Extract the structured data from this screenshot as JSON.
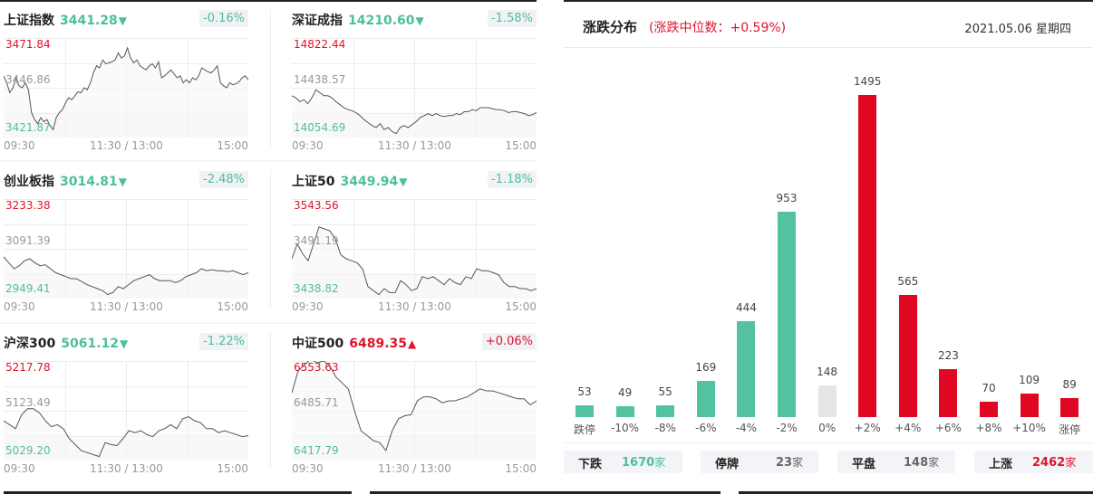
{
  "indices": [
    {
      "name": "上证指数",
      "price": "3441.28",
      "direction": "down",
      "arrow": "▼",
      "change_pct": "-0.16%",
      "y_high": "3471.84",
      "y_mid": "3446.86",
      "y_low": "3421.87",
      "x_labels": [
        "09:30",
        "11:30 / 13:00",
        "15:00"
      ],
      "series": [
        62,
        55,
        45,
        50,
        60,
        52,
        50,
        55,
        48,
        25,
        18,
        14,
        20,
        16,
        18,
        12,
        8,
        20,
        25,
        28,
        35,
        40,
        38,
        42,
        46,
        45,
        50,
        48,
        55,
        65,
        72,
        70,
        78,
        74,
        75,
        76,
        78,
        85,
        80,
        82,
        90,
        80,
        75,
        78,
        72,
        70,
        68,
        72,
        74,
        70,
        76,
        60,
        62,
        65,
        68,
        64,
        60,
        62,
        55,
        58,
        55,
        60,
        58,
        62,
        70,
        68,
        66,
        65,
        68,
        72,
        55,
        52,
        50,
        55,
        53,
        54,
        56,
        60,
        62,
        58
      ]
    },
    {
      "name": "深证成指",
      "price": "14210.60",
      "direction": "down",
      "arrow": "▼",
      "change_pct": "-1.58%",
      "y_high": "14822.44",
      "y_mid": "14438.57",
      "y_low": "14054.69",
      "x_labels": [
        "09:30",
        "11:30 / 13:00",
        "15:00"
      ],
      "series": [
        42,
        40,
        36,
        38,
        34,
        40,
        48,
        45,
        42,
        42,
        40,
        36,
        33,
        30,
        28,
        27,
        25,
        22,
        18,
        15,
        12,
        10,
        14,
        8,
        10,
        6,
        4,
        10,
        12,
        10,
        13,
        16,
        20,
        22,
        24,
        22,
        24,
        22,
        21,
        22,
        22,
        24,
        23,
        26,
        26,
        28,
        27,
        30,
        30,
        30,
        29,
        28,
        28,
        27,
        25,
        26,
        26,
        25,
        24,
        22,
        23,
        25
      ]
    },
    {
      "name": "创业板指",
      "price": "3014.81",
      "direction": "down",
      "arrow": "▼",
      "change_pct": "-2.48%",
      "y_high": "3233.38",
      "y_mid": "3091.39",
      "y_low": "2949.41",
      "x_labels": [
        "09:30",
        "11:30 / 13:00",
        "15:00"
      ],
      "series": [
        42,
        36,
        30,
        33,
        38,
        40,
        36,
        33,
        34,
        30,
        26,
        24,
        22,
        20,
        20,
        17,
        14,
        12,
        10,
        8,
        4,
        6,
        12,
        10,
        14,
        18,
        20,
        22,
        24,
        20,
        18,
        18,
        18,
        16,
        18,
        22,
        24,
        26,
        30,
        28,
        29,
        28,
        28,
        27,
        28,
        26,
        24,
        26
      ]
    },
    {
      "name": "上证50",
      "price": "3449.94",
      "direction": "down",
      "arrow": "▼",
      "change_pct": "-1.18%",
      "y_high": "3543.56",
      "y_mid": "3491.19",
      "y_low": "3438.82",
      "x_labels": [
        "09:30",
        "11:30 / 13:00",
        "15:00"
      ],
      "series": [
        40,
        55,
        45,
        38,
        55,
        72,
        70,
        68,
        60,
        44,
        40,
        38,
        36,
        30,
        12,
        8,
        4,
        10,
        6,
        6,
        18,
        14,
        8,
        10,
        22,
        20,
        22,
        18,
        14,
        20,
        16,
        14,
        22,
        20,
        30,
        28,
        28,
        26,
        24,
        16,
        12,
        12,
        10,
        10,
        8,
        10
      ]
    },
    {
      "name": "沪深300",
      "price": "5061.12",
      "direction": "down",
      "arrow": "▼",
      "change_pct": "-1.22%",
      "y_high": "5217.78",
      "y_mid": "5123.49",
      "y_low": "5029.20",
      "x_labels": [
        "09:30",
        "11:30 / 13:00",
        "15:00"
      ],
      "series": [
        40,
        36,
        32,
        46,
        52,
        52,
        48,
        40,
        34,
        36,
        32,
        22,
        16,
        10,
        8,
        6,
        4,
        18,
        16,
        15,
        22,
        30,
        28,
        30,
        26,
        24,
        30,
        32,
        36,
        32,
        42,
        44,
        40,
        38,
        32,
        32,
        28,
        30,
        28,
        26,
        24,
        25
      ]
    },
    {
      "name": "中证500",
      "price": "6489.35",
      "direction": "up",
      "arrow": "▲",
      "change_pct": "+0.06%",
      "y_high": "6553.63",
      "y_mid": "6485.71",
      "y_low": "6417.79",
      "x_labels": [
        "09:30",
        "11:30 / 13:00",
        "15:00"
      ],
      "series": [
        68,
        90,
        96,
        102,
        98,
        100,
        96,
        84,
        78,
        72,
        50,
        30,
        25,
        20,
        18,
        10,
        30,
        42,
        45,
        46,
        60,
        64,
        64,
        62,
        58,
        60,
        60,
        62,
        64,
        68,
        72,
        70,
        70,
        68,
        66,
        64,
        62,
        62,
        56,
        60
      ]
    }
  ],
  "distribution": {
    "title": "涨跌分布",
    "subtitle": "(涨跌中位数：+0.59%)",
    "date": "2021.05.06 星期四",
    "colors": {
      "down": "#52c2a0",
      "up": "#e00722",
      "flat": "#e5e5e5"
    },
    "stats": [
      {
        "label": "下跌",
        "value": "1670",
        "unit": "家"
      },
      {
        "label": "停牌",
        "value": "23",
        "unit": "家"
      },
      {
        "label": "平盘",
        "value": "148",
        "unit": "家"
      },
      {
        "label": "上涨",
        "value": "2462",
        "unit": "家"
      }
    ]
  },
  "chart_data": {
    "type": "bar",
    "title": "涨跌分布",
    "subtitle": "(涨跌中位数：+0.59%)",
    "categories": [
      "跌停",
      "-10%",
      "-8%",
      "-6%",
      "-4%",
      "-2%",
      "0%",
      "+2%",
      "+4%",
      "+6%",
      "+8%",
      "+10%",
      "涨停"
    ],
    "values": [
      53,
      49,
      55,
      169,
      444,
      953,
      148,
      1495,
      565,
      223,
      70,
      109,
      89
    ],
    "bar_colors": [
      "down",
      "down",
      "down",
      "down",
      "down",
      "down",
      "flat",
      "up",
      "up",
      "up",
      "up",
      "up",
      "up"
    ],
    "xlabel": "",
    "ylabel": "",
    "ylim": [
      0,
      1495
    ],
    "grid": false,
    "legend": "none"
  }
}
